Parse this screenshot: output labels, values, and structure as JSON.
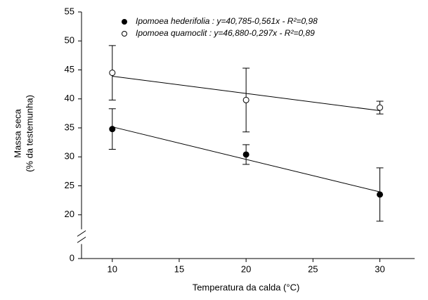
{
  "chart_data": {
    "type": "scatter",
    "x_label": "Temperatura da calda (°C)",
    "y_label": [
      "Massa seca",
      "(% da testemunha)"
    ],
    "x": [
      10,
      20,
      30
    ],
    "series": [
      {
        "name": "Ipomoea hederifolia",
        "equation": " : y=40,785-0,561x - R²=0,98",
        "marker": "filled",
        "color": "#000000",
        "values": [
          34.8,
          30.4,
          23.5
        ],
        "errors": [
          3.5,
          1.7,
          4.6
        ],
        "fit": {
          "intercept": 40.785,
          "slope": -0.561
        }
      },
      {
        "name": "Ipomoea quamoclit",
        "equation": " : y=46,880-0,297x - R²=0,89",
        "marker": "open",
        "color": "#000000",
        "values": [
          44.5,
          39.8,
          38.5
        ],
        "errors": [
          4.7,
          5.5,
          1.1
        ],
        "fit": {
          "intercept": 46.88,
          "slope": -0.297
        }
      }
    ],
    "xlim": [
      7.7,
      32.6
    ],
    "xticks": [
      10,
      15,
      20,
      25,
      30
    ],
    "ylim": [
      0,
      55
    ],
    "yticks": [
      0,
      20,
      25,
      30,
      35,
      40,
      45,
      50,
      55
    ],
    "y_break": [
      2.5,
      17.5
    ],
    "legend": "upper-left"
  }
}
